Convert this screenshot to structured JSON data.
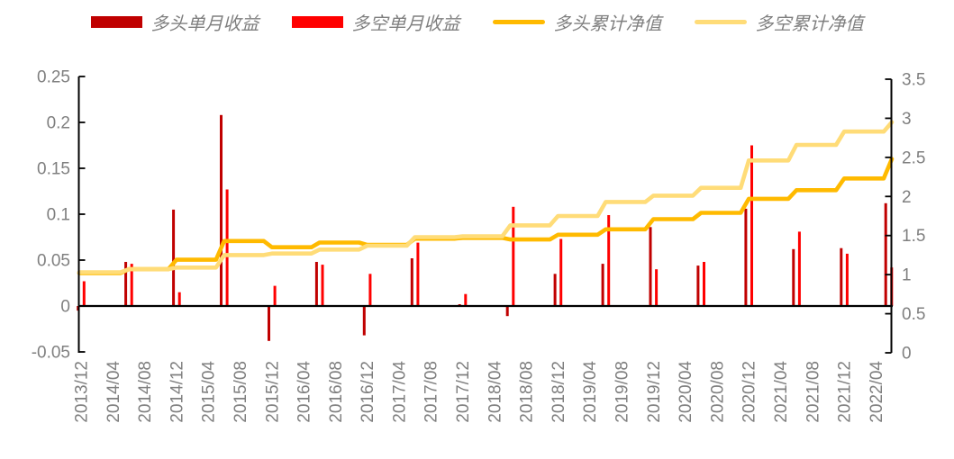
{
  "legend": {
    "items": [
      {
        "label": "多头单月收益",
        "type": "bar",
        "color": "#C00000"
      },
      {
        "label": "多空单月收益",
        "type": "bar",
        "color": "#FF0000"
      },
      {
        "label": "多头累计净值",
        "type": "line",
        "color": "#FFBA00"
      },
      {
        "label": "多空累计净值",
        "type": "line",
        "color": "#FFDC78"
      }
    ]
  },
  "chart_data": {
    "type": "bar",
    "subtype": "combo-bar-line-dual-axis",
    "title": "",
    "legend_position": "top",
    "grid": false,
    "categories": [
      "2013/12",
      "2014/06",
      "2014/12",
      "2015/06",
      "2015/12",
      "2016/06",
      "2016/12",
      "2017/06",
      "2017/12",
      "2018/06",
      "2018/12",
      "2019/06",
      "2019/12",
      "2020/06",
      "2020/12",
      "2021/06",
      "2021/12",
      "2022/06"
    ],
    "month_offsets": [
      0,
      6,
      12,
      18,
      24,
      30,
      36,
      42,
      48,
      54,
      60,
      66,
      72,
      78,
      84,
      90,
      96,
      102
    ],
    "series": [
      {
        "name": "多头单月收益",
        "type": "bar",
        "axis": "left",
        "color": "#C00000",
        "values": [
          -0.005,
          0.048,
          0.105,
          0.208,
          -0.038,
          0.048,
          -0.032,
          0.052,
          0.002,
          -0.011,
          0.035,
          0.046,
          0.086,
          0.044,
          0.106,
          0.062,
          0.063,
          0.112
        ]
      },
      {
        "name": "多空单月收益",
        "type": "bar",
        "axis": "left",
        "color": "#FF0000",
        "values": [
          0.027,
          0.046,
          0.015,
          0.127,
          0.022,
          0.045,
          0.035,
          0.069,
          0.013,
          0.108,
          0.073,
          0.099,
          0.04,
          0.048,
          0.175,
          0.081,
          0.057,
          0.042
        ]
      },
      {
        "name": "多头累计净值",
        "type": "line",
        "axis": "right",
        "color": "#FFBA00",
        "values": [
          1.02,
          1.07,
          1.19,
          1.43,
          1.35,
          1.41,
          1.38,
          1.46,
          1.47,
          1.45,
          1.51,
          1.58,
          1.71,
          1.79,
          1.97,
          2.08,
          2.23,
          2.48
        ]
      },
      {
        "name": "多空累计净值",
        "type": "line",
        "axis": "right",
        "color": "#FFDC78",
        "values": [
          1.03,
          1.07,
          1.09,
          1.25,
          1.27,
          1.32,
          1.37,
          1.48,
          1.49,
          1.63,
          1.75,
          1.93,
          2.01,
          2.11,
          2.46,
          2.66,
          2.83,
          2.95
        ]
      }
    ],
    "x_axis": {
      "start": "2013/12",
      "end": "2022/04",
      "interval_months": 4,
      "tick_labels": [
        "2013/12",
        "2014/04",
        "2014/08",
        "2014/12",
        "2015/04",
        "2015/08",
        "2015/12",
        "2016/04",
        "2016/08",
        "2016/12",
        "2017/04",
        "2017/08",
        "2017/12",
        "2018/04",
        "2018/08",
        "2018/12",
        "2019/04",
        "2019/08",
        "2019/12",
        "2020/04",
        "2020/08",
        "2020/12",
        "2021/04",
        "2021/08",
        "2021/12",
        "2022/04"
      ]
    },
    "left_axis": {
      "range": [
        -0.05,
        0.25
      ],
      "tick_labels": [
        "0.25",
        "0.2",
        "0.15",
        "0.1",
        "0.05",
        "0",
        "-0.05"
      ]
    },
    "right_axis": {
      "range": [
        0,
        3.5
      ],
      "tick_labels": [
        "3.5",
        "3",
        "2.5",
        "2",
        "1.5",
        "1",
        "0.5",
        "0"
      ]
    },
    "colors": {
      "axis_line": "#000000",
      "tick_text": "#7F7F7F",
      "background": "#FFFFFF"
    }
  }
}
